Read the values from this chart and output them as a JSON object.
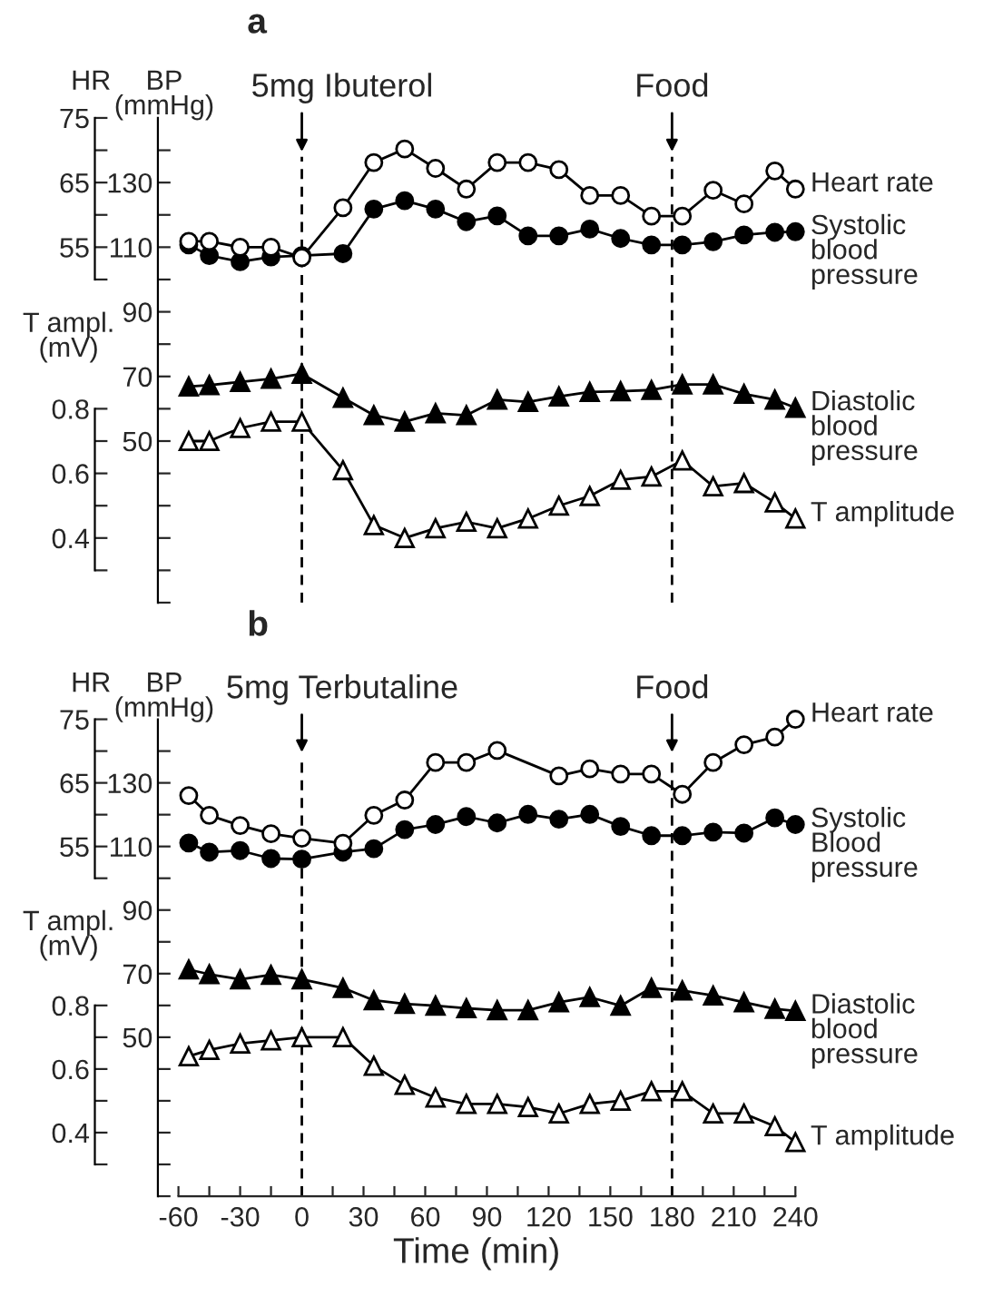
{
  "chart_data": [
    {
      "type": "line",
      "title": "a",
      "ylabel": "BP\n(mmHg)",
      "y2label": "HR",
      "y3label": "T ampl.\n(mV)",
      "x": [
        -55,
        -45,
        -30,
        -15,
        0,
        20,
        35,
        50,
        65,
        80,
        95,
        110,
        125,
        140,
        155,
        170,
        185,
        200,
        215,
        230,
        240
      ],
      "series": [
        {
          "name": "Heart rate",
          "color": "#ffffff",
          "marker": "circle",
          "axis": "y2",
          "values": [
            55.9,
            55.9,
            55.0,
            55.0,
            53.4,
            61.1,
            68.1,
            70.2,
            67.2,
            64.0,
            68.1,
            68.1,
            67.0,
            63.0,
            63.0,
            59.8,
            59.8,
            63.8,
            61.7,
            66.8,
            64.0
          ]
        },
        {
          "name": "Systolic\nblood\npressure",
          "color": "#000000",
          "marker": "circle",
          "values": [
            110.7,
            107.4,
            105.5,
            107.0,
            107.4,
            108.0,
            121.8,
            124.4,
            121.8,
            117.9,
            119.7,
            113.5,
            113.5,
            115.6,
            112.7,
            110.7,
            110.7,
            111.7,
            113.8,
            114.6,
            114.8
          ]
        },
        {
          "name": "Diastolic\nblood\npressure",
          "color": "#000000",
          "marker": "triangle",
          "values": [
            66.9,
            67.3,
            68.3,
            69.3,
            70.8,
            63.4,
            58.0,
            56.0,
            58.6,
            58.0,
            62.8,
            62.1,
            63.8,
            65.2,
            65.4,
            65.8,
            67.5,
            67.5,
            64.6,
            62.8,
            60.3
          ]
        },
        {
          "name": "T amplitude",
          "color": "#ffffff",
          "marker": "triangle",
          "axis": "y3",
          "values": [
            0.7,
            0.7,
            0.74,
            0.76,
            0.76,
            0.61,
            0.44,
            0.4,
            0.43,
            0.45,
            0.43,
            0.46,
            0.5,
            0.53,
            0.58,
            0.59,
            0.64,
            0.56,
            0.57,
            0.51,
            0.46
          ]
        }
      ],
      "xlim": [
        -70,
        240
      ],
      "ylim": [
        0,
        150
      ],
      "yticks": [
        {
          "value": 0,
          "label": null
        },
        {
          "value": 10,
          "label": null
        },
        {
          "value": 20,
          "label": null
        },
        {
          "value": 30,
          "label": null
        },
        {
          "value": 40,
          "label": null
        },
        50,
        {
          "value": 60,
          "label": null
        },
        70,
        {
          "value": 80,
          "label": null
        },
        90,
        {
          "value": 100,
          "label": null
        },
        110,
        {
          "value": 120,
          "label": null
        },
        130,
        {
          "value": 140,
          "label": null
        }
      ],
      "y2lim": [
        0,
        75
      ],
      "y2ticks": [
        {
          "value": 50,
          "label": null
        },
        55,
        {
          "value": 60,
          "label": null
        },
        65,
        {
          "value": 70,
          "label": null
        },
        75
      ],
      "y3lim": [
        0.2,
        1.7
      ],
      "y3ticks": [
        {
          "value": 0.3,
          "label": null
        },
        0.4,
        {
          "value": 0.5,
          "label": null
        },
        0.6,
        {
          "value": 0.7,
          "label": null
        },
        0.8
      ],
      "ref_lines": [
        {
          "axis": "x",
          "value": 0,
          "label": "5mg Ibuterol",
          "line_style": "dashed"
        },
        {
          "axis": "x",
          "value": 180,
          "label": "Food",
          "line_style": "dashed"
        }
      ],
      "tick_labels": "y",
      "legend": false
    },
    {
      "type": "line",
      "title": "b",
      "ylabel": "BP\n(mmHg)",
      "y2label": "HR",
      "y3label": "T ampl.\n(mV)",
      "xlabel": "Time (min)",
      "x": [
        -55,
        -45,
        -30,
        -15,
        0,
        20,
        35,
        50,
        65,
        80,
        95,
        110,
        125,
        140,
        155,
        170,
        185,
        200,
        215,
        230,
        240
      ],
      "series": [
        {
          "name": "Heart rate",
          "color": "#ffffff",
          "marker": "circle",
          "axis": "y2",
          "x": [
            -55,
            -45,
            -30,
            -15,
            0,
            20,
            35,
            50,
            65,
            80,
            95,
            125,
            140,
            155,
            170,
            185,
            200,
            215,
            230,
            240
          ],
          "values": [
            63.0,
            59.9,
            58.3,
            57.0,
            56.3,
            55.5,
            59.9,
            62.3,
            68.2,
            68.2,
            70.1,
            66.1,
            67.2,
            66.4,
            66.4,
            63.2,
            68.2,
            71.0,
            72.2,
            75.0
          ]
        },
        {
          "name": "Systolic\nBlood\npressure",
          "color": "#000000",
          "marker": "circle",
          "values": [
            111.1,
            108.2,
            108.7,
            106.2,
            106.0,
            108.2,
            109.3,
            115.3,
            116.9,
            119.4,
            117.4,
            120.1,
            118.6,
            120.1,
            116.3,
            113.4,
            113.4,
            114.5,
            114.2,
            119.0,
            116.9
          ]
        },
        {
          "name": "Diastolic\nblood\npressure",
          "color": "#000000",
          "marker": "triangle",
          "values": [
            71.3,
            69.8,
            68.2,
            69.6,
            68.2,
            65.5,
            61.6,
            60.5,
            59.9,
            59.1,
            58.5,
            58.5,
            61.0,
            62.6,
            59.9,
            65.5,
            64.7,
            63.1,
            61.0,
            58.9,
            58.3
          ]
        },
        {
          "name": "T amplitude",
          "color": "#ffffff",
          "marker": "triangle",
          "axis": "y3",
          "values": [
            0.64,
            0.66,
            0.68,
            0.69,
            0.7,
            0.7,
            0.61,
            0.55,
            0.51,
            0.49,
            0.49,
            0.48,
            0.46,
            0.49,
            0.5,
            0.53,
            0.53,
            0.46,
            0.46,
            0.42,
            0.37
          ]
        }
      ],
      "xlim": [
        -70,
        240
      ],
      "xticks": [
        -60,
        {
          "value": -45,
          "label": null
        },
        -30,
        {
          "value": -15,
          "label": null
        },
        0,
        {
          "value": 15,
          "label": null
        },
        30,
        {
          "value": 45,
          "label": null
        },
        60,
        {
          "value": 75,
          "label": null
        },
        90,
        {
          "value": 105,
          "label": null
        },
        120,
        {
          "value": 135,
          "label": null
        },
        150,
        {
          "value": 165,
          "label": null
        },
        180,
        {
          "value": 195,
          "label": null
        },
        210,
        {
          "value": 225,
          "label": null
        },
        240
      ],
      "ylim": [
        0,
        150
      ],
      "yticks": [
        {
          "value": 0,
          "label": null
        },
        {
          "value": 10,
          "label": null
        },
        {
          "value": 20,
          "label": null
        },
        {
          "value": 30,
          "label": null
        },
        {
          "value": 40,
          "label": null
        },
        50,
        {
          "value": 60,
          "label": null
        },
        70,
        {
          "value": 80,
          "label": null
        },
        90,
        {
          "value": 100,
          "label": null
        },
        110,
        {
          "value": 120,
          "label": null
        },
        130,
        {
          "value": 140,
          "label": null
        }
      ],
      "y2lim": [
        0,
        75
      ],
      "y2ticks": [
        {
          "value": 50,
          "label": null
        },
        55,
        {
          "value": 60,
          "label": null
        },
        65,
        {
          "value": 70,
          "label": null
        },
        75
      ],
      "y3lim": [
        0.2,
        1.7
      ],
      "y3ticks": [
        {
          "value": 0.3,
          "label": null
        },
        0.4,
        {
          "value": 0.5,
          "label": null
        },
        0.6,
        {
          "value": 0.7,
          "label": null
        },
        0.8
      ],
      "ref_lines": [
        {
          "axis": "x",
          "value": 0,
          "label": "5mg Terbutaline",
          "line_style": "dashed"
        },
        {
          "axis": "x",
          "value": 180,
          "label": "Food",
          "line_style": "dashed"
        }
      ],
      "legend": false
    }
  ]
}
